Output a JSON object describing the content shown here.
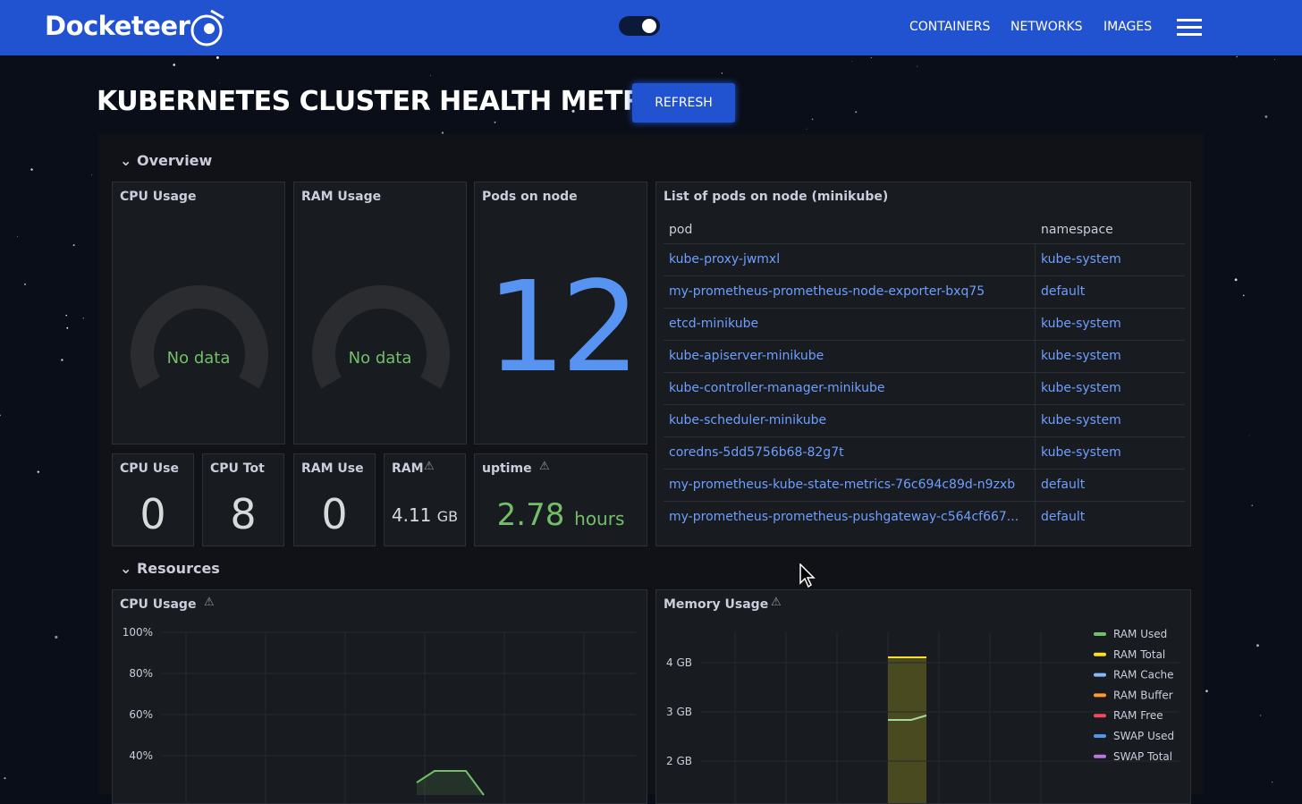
{
  "header": {
    "brand": "Docketeer",
    "nav": [
      "CONTAINERS",
      "NETWORKS",
      "IMAGES"
    ]
  },
  "page": {
    "title": "KUBERNETES CLUSTER HEALTH METRICS",
    "refresh": "REFRESH"
  },
  "overview": {
    "title": "Overview",
    "gauges": [
      {
        "title": "CPU Usage",
        "text": "No data"
      },
      {
        "title": "RAM Usage",
        "text": "No data"
      }
    ],
    "pods_count": {
      "title": "Pods on node",
      "value": 12
    },
    "stats": [
      {
        "title": "CPU Use",
        "value": 0
      },
      {
        "title": "CPU Tot",
        "value": 8
      },
      {
        "title": "RAM Use",
        "value": 0
      },
      {
        "title": "RAM",
        "value": 4.11,
        "unit": "GB"
      }
    ],
    "uptime": {
      "title": "uptime",
      "value": 2.78,
      "unit": "hours"
    },
    "pods_table": {
      "title": "List of pods on node (minikube)",
      "columns": [
        "pod",
        "namespace"
      ],
      "rows": [
        [
          "kube-proxy-jwmxl",
          "kube-system"
        ],
        [
          "my-prometheus-prometheus-node-exporter-bxq75",
          "default"
        ],
        [
          "etcd-minikube",
          "kube-system"
        ],
        [
          "kube-apiserver-minikube",
          "kube-system"
        ],
        [
          "kube-controller-manager-minikube",
          "kube-system"
        ],
        [
          "kube-scheduler-minikube",
          "kube-system"
        ],
        [
          "coredns-5dd5756b68-82g7t",
          "kube-system"
        ],
        [
          "my-prometheus-kube-state-metrics-76c694c89d-n9zxb",
          "default"
        ],
        [
          "my-prometheus-prometheus-pushgateway-c564cf667...",
          "default"
        ]
      ]
    }
  },
  "resources": {
    "title": "Resources",
    "cpu_chart": {
      "title": "CPU Usage",
      "yticks": [
        {
          "value": 100,
          "label": "100%"
        },
        {
          "value": 80,
          "label": "80%"
        },
        {
          "value": 60,
          "label": "60%"
        },
        {
          "value": 40,
          "label": "40%"
        }
      ]
    },
    "memory_chart": {
      "title": "Memory Usage",
      "yticks": [
        {
          "value": 4,
          "label": "4 GB"
        },
        {
          "value": 3,
          "label": "3 GB"
        },
        {
          "value": 2,
          "label": "2 GB"
        }
      ],
      "legend": [
        {
          "name": "RAM Used",
          "color": "#73bf69"
        },
        {
          "name": "RAM Total",
          "color": "#fade2a"
        },
        {
          "name": "RAM Cache",
          "color": "#8ab8ff"
        },
        {
          "name": "RAM Buffer",
          "color": "#ff9830"
        },
        {
          "name": "RAM Free",
          "color": "#f2495c"
        },
        {
          "name": "SWAP Used",
          "color": "#5794f2"
        },
        {
          "name": "SWAP Total",
          "color": "#b877d9"
        }
      ]
    }
  }
}
